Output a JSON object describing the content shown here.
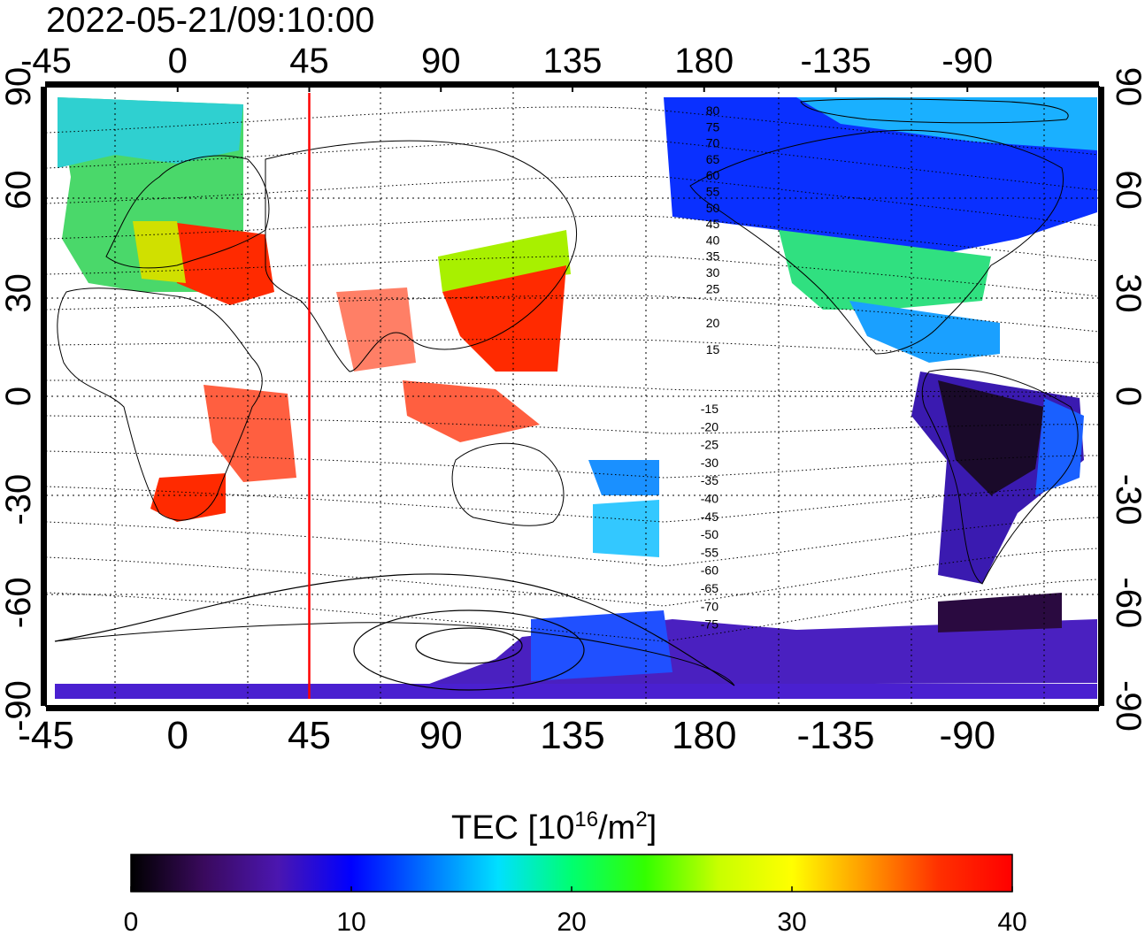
{
  "timestamp": "2022-05-21/09:10:00",
  "map": {
    "projection": "equirectangular",
    "center_longitude": 135,
    "marker_longitude": 45,
    "marker_color": "#ff0000",
    "top_axis_labels": [
      "0",
      "45",
      "90",
      "135",
      "180",
      "-135",
      "-90",
      "-45"
    ],
    "bottom_axis_labels": [
      "0",
      "45",
      "90",
      "135",
      "180",
      "-135",
      "-90",
      "-45"
    ],
    "left_axis_labels": [
      "90",
      "60",
      "30",
      "0",
      "-30",
      "-60",
      "-90"
    ],
    "right_axis_labels": [
      "90",
      "60",
      "30",
      "0",
      "-30",
      "-60",
      "-90"
    ],
    "contour_labels_north": [
      "80",
      "75",
      "70",
      "65",
      "60",
      "55",
      "50",
      "45",
      "40",
      "35",
      "30",
      "25",
      "20",
      "15"
    ],
    "contour_labels_south": [
      "-15",
      "-20",
      "-25",
      "-30",
      "-35",
      "-40",
      "-45",
      "-50",
      "-55",
      "-60",
      "-65",
      "-70",
      "-75"
    ],
    "grid": "dotted"
  },
  "colorbar": {
    "title_prefix": "TEC  [10",
    "title_exp1": "16",
    "title_mid": "/m",
    "title_exp2": "2",
    "title_suffix": "]",
    "min": 0,
    "max": 40,
    "tick_labels": [
      "0",
      "10",
      "20",
      "30",
      "40"
    ],
    "colors": [
      "#000000",
      "#3a0a5e",
      "#4b16b0",
      "#0000ff",
      "#0070ff",
      "#00e0ff",
      "#00ff70",
      "#33ff00",
      "#c8ff00",
      "#ffff00",
      "#ff9a00",
      "#ff3000",
      "#ff0000"
    ]
  }
}
